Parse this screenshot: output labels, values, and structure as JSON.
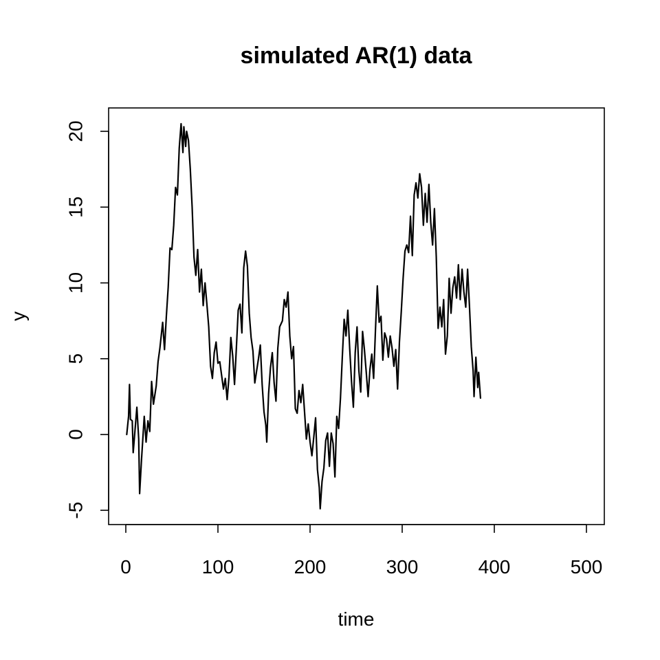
{
  "chart_data": {
    "type": "line",
    "title": "simulated AR(1) data",
    "xlabel": "time",
    "ylabel": "y",
    "xlim": [
      0,
      500
    ],
    "ylim": [
      -5,
      20
    ],
    "x_ticks": [
      0,
      100,
      200,
      300,
      400,
      500
    ],
    "y_ticks": [
      -5,
      0,
      5,
      10,
      15,
      20
    ],
    "x_tick_labels": [
      "0",
      "100",
      "200",
      "300",
      "400",
      "500"
    ],
    "y_tick_labels": [
      "-5",
      "0",
      "5",
      "10",
      "15",
      "20"
    ],
    "grid": false,
    "series": [
      {
        "color": "#000000",
        "points": [
          [
            1,
            0.0
          ],
          [
            3,
            1.2
          ],
          [
            4,
            3.3
          ],
          [
            5,
            1.0
          ],
          [
            7,
            0.9
          ],
          [
            8,
            -1.2
          ],
          [
            10,
            0.3
          ],
          [
            12,
            1.8
          ],
          [
            14,
            -0.3
          ],
          [
            15,
            -3.9
          ],
          [
            17,
            -1.7
          ],
          [
            20,
            1.2
          ],
          [
            22,
            -0.5
          ],
          [
            24,
            0.9
          ],
          [
            26,
            0.2
          ],
          [
            28,
            3.5
          ],
          [
            30,
            2.0
          ],
          [
            33,
            3.2
          ],
          [
            35,
            4.8
          ],
          [
            37,
            5.7
          ],
          [
            40,
            7.4
          ],
          [
            42,
            5.6
          ],
          [
            44,
            7.8
          ],
          [
            46,
            9.7
          ],
          [
            48,
            12.3
          ],
          [
            50,
            12.2
          ],
          [
            52,
            13.8
          ],
          [
            54,
            16.3
          ],
          [
            56,
            15.8
          ],
          [
            58,
            18.9
          ],
          [
            60,
            20.5
          ],
          [
            62,
            18.6
          ],
          [
            63,
            20.3
          ],
          [
            65,
            19.0
          ],
          [
            66,
            20.0
          ],
          [
            68,
            19.4
          ],
          [
            70,
            17.5
          ],
          [
            72,
            15.0
          ],
          [
            74,
            11.7
          ],
          [
            76,
            10.5
          ],
          [
            78,
            12.2
          ],
          [
            80,
            9.4
          ],
          [
            82,
            10.9
          ],
          [
            84,
            8.5
          ],
          [
            86,
            10.0
          ],
          [
            88,
            8.6
          ],
          [
            90,
            7.1
          ],
          [
            92,
            4.5
          ],
          [
            94,
            3.7
          ],
          [
            96,
            5.4
          ],
          [
            98,
            6.1
          ],
          [
            100,
            4.7
          ],
          [
            102,
            4.8
          ],
          [
            104,
            3.9
          ],
          [
            106,
            3.0
          ],
          [
            108,
            3.7
          ],
          [
            110,
            2.3
          ],
          [
            112,
            3.8
          ],
          [
            114,
            6.4
          ],
          [
            116,
            5.2
          ],
          [
            118,
            3.3
          ],
          [
            120,
            5.7
          ],
          [
            122,
            8.2
          ],
          [
            124,
            8.6
          ],
          [
            126,
            6.7
          ],
          [
            128,
            11.0
          ],
          [
            130,
            12.1
          ],
          [
            132,
            11.1
          ],
          [
            134,
            8.0
          ],
          [
            136,
            6.4
          ],
          [
            138,
            5.5
          ],
          [
            140,
            3.4
          ],
          [
            142,
            4.2
          ],
          [
            144,
            5.0
          ],
          [
            146,
            5.9
          ],
          [
            148,
            3.3
          ],
          [
            150,
            1.5
          ],
          [
            152,
            0.6
          ],
          [
            153,
            -0.5
          ],
          [
            155,
            2.7
          ],
          [
            157,
            4.4
          ],
          [
            159,
            5.4
          ],
          [
            161,
            3.4
          ],
          [
            163,
            2.2
          ],
          [
            165,
            5.7
          ],
          [
            167,
            7.1
          ],
          [
            170,
            7.5
          ],
          [
            172,
            8.9
          ],
          [
            174,
            8.4
          ],
          [
            176,
            9.4
          ],
          [
            178,
            6.5
          ],
          [
            180,
            5.0
          ],
          [
            182,
            5.8
          ],
          [
            184,
            1.7
          ],
          [
            186,
            1.4
          ],
          [
            188,
            2.9
          ],
          [
            190,
            2.1
          ],
          [
            192,
            3.3
          ],
          [
            194,
            1.5
          ],
          [
            196,
            -0.3
          ],
          [
            198,
            0.7
          ],
          [
            200,
            -0.5
          ],
          [
            202,
            -1.4
          ],
          [
            204,
            -0.2
          ],
          [
            206,
            1.1
          ],
          [
            208,
            -2.3
          ],
          [
            210,
            -3.5
          ],
          [
            211,
            -4.9
          ],
          [
            213,
            -3.1
          ],
          [
            215,
            -2.2
          ],
          [
            217,
            -0.4
          ],
          [
            219,
            0.1
          ],
          [
            221,
            -2.1
          ],
          [
            223,
            0.1
          ],
          [
            225,
            -0.6
          ],
          [
            227,
            -2.8
          ],
          [
            229,
            1.2
          ],
          [
            231,
            0.4
          ],
          [
            233,
            2.4
          ],
          [
            235,
            5.1
          ],
          [
            237,
            7.6
          ],
          [
            239,
            6.5
          ],
          [
            241,
            8.2
          ],
          [
            243,
            5.7
          ],
          [
            245,
            3.5
          ],
          [
            247,
            1.8
          ],
          [
            249,
            5.4
          ],
          [
            251,
            7.1
          ],
          [
            253,
            4.2
          ],
          [
            255,
            2.8
          ],
          [
            257,
            6.8
          ],
          [
            259,
            5.6
          ],
          [
            261,
            4.1
          ],
          [
            263,
            2.5
          ],
          [
            265,
            4.3
          ],
          [
            267,
            5.3
          ],
          [
            269,
            3.7
          ],
          [
            271,
            6.9
          ],
          [
            273,
            9.8
          ],
          [
            275,
            7.4
          ],
          [
            277,
            7.8
          ],
          [
            279,
            4.9
          ],
          [
            281,
            6.7
          ],
          [
            283,
            6.3
          ],
          [
            285,
            5.1
          ],
          [
            287,
            6.5
          ],
          [
            289,
            5.7
          ],
          [
            291,
            4.5
          ],
          [
            293,
            5.6
          ],
          [
            295,
            3.0
          ],
          [
            297,
            6.1
          ],
          [
            299,
            8.1
          ],
          [
            301,
            10.3
          ],
          [
            303,
            12.1
          ],
          [
            305,
            12.5
          ],
          [
            307,
            12.0
          ],
          [
            309,
            14.4
          ],
          [
            311,
            11.8
          ],
          [
            313,
            15.8
          ],
          [
            315,
            16.6
          ],
          [
            317,
            15.6
          ],
          [
            319,
            17.2
          ],
          [
            321,
            16.3
          ],
          [
            323,
            13.8
          ],
          [
            325,
            15.9
          ],
          [
            327,
            14.0
          ],
          [
            329,
            16.5
          ],
          [
            331,
            14.0
          ],
          [
            333,
            12.5
          ],
          [
            335,
            14.9
          ],
          [
            337,
            11.7
          ],
          [
            339,
            7.0
          ],
          [
            341,
            8.4
          ],
          [
            343,
            7.1
          ],
          [
            345,
            8.9
          ],
          [
            347,
            5.3
          ],
          [
            349,
            6.5
          ],
          [
            351,
            10.3
          ],
          [
            353,
            8.0
          ],
          [
            355,
            9.7
          ],
          [
            357,
            10.4
          ],
          [
            359,
            9.0
          ],
          [
            361,
            11.2
          ],
          [
            363,
            8.9
          ],
          [
            365,
            10.9
          ],
          [
            367,
            9.4
          ],
          [
            369,
            8.4
          ],
          [
            371,
            10.9
          ],
          [
            373,
            8.5
          ],
          [
            375,
            5.8
          ],
          [
            377,
            4.2
          ],
          [
            378,
            2.5
          ],
          [
            380,
            5.1
          ],
          [
            382,
            3.1
          ],
          [
            383,
            4.1
          ],
          [
            385,
            2.4
          ]
        ]
      }
    ]
  }
}
